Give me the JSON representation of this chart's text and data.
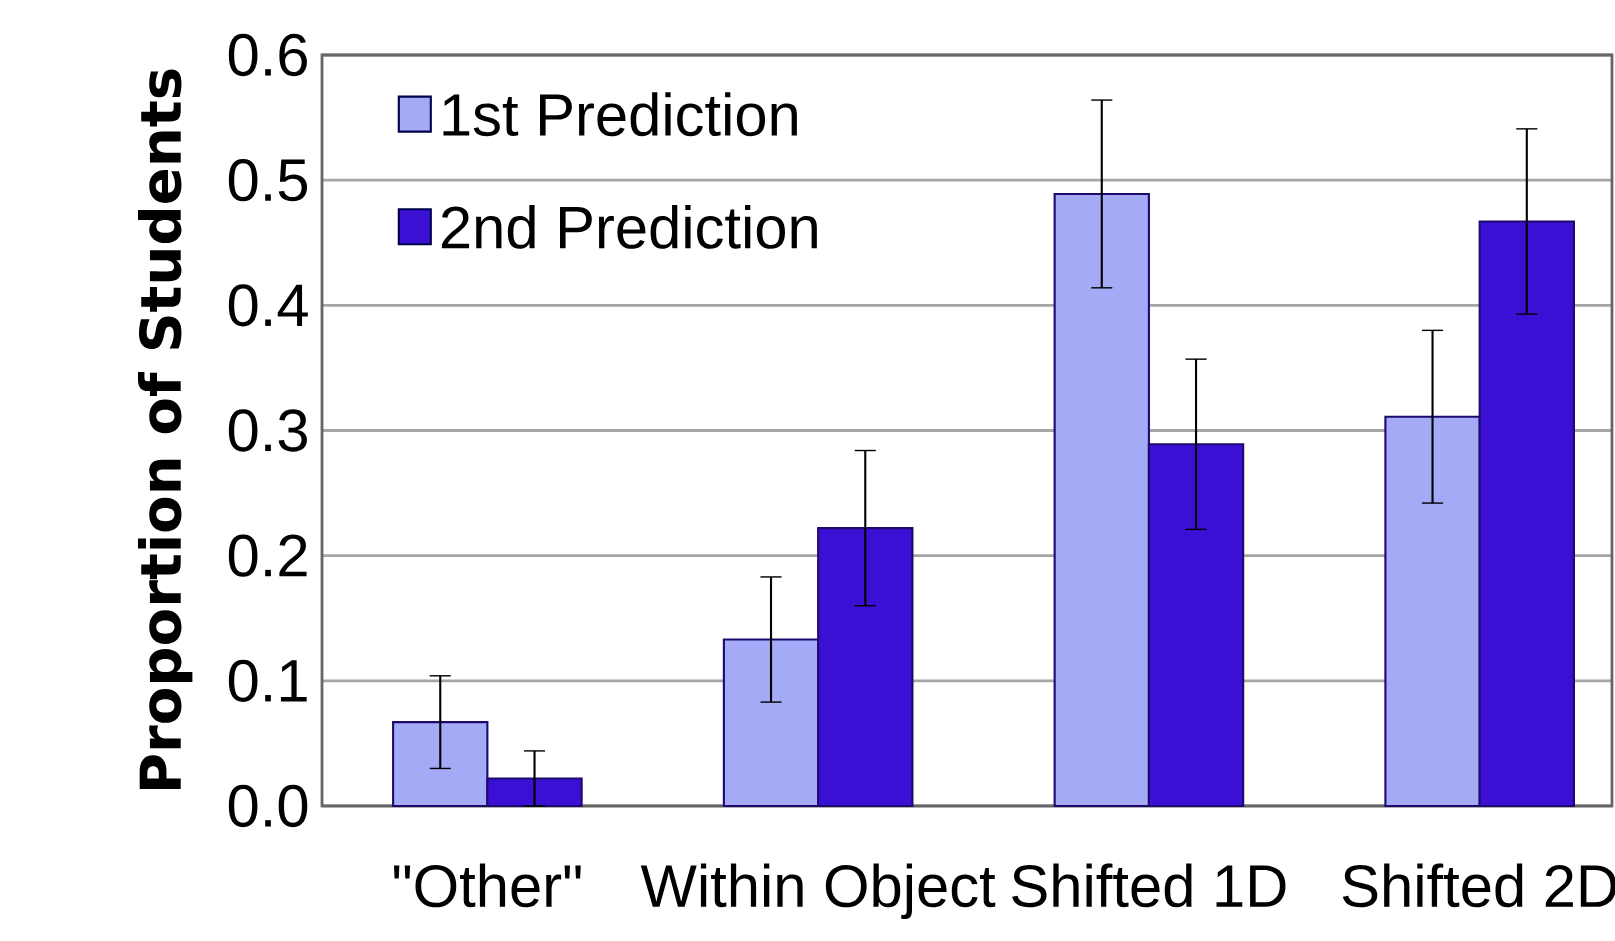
{
  "chart_data": {
    "type": "bar",
    "ylabel": "Proportion of Students",
    "categories": [
      "\"Other\"",
      "Within Object",
      "Shifted 1D",
      "Shifted 2D"
    ],
    "series": [
      {
        "name": "1st Prediction",
        "color": "#a5aaf7",
        "values": [
          0.067,
          0.133,
          0.489,
          0.311
        ],
        "errors": [
          0.037,
          0.05,
          0.075,
          0.069
        ]
      },
      {
        "name": "2nd Prediction",
        "color": "#3a10d4",
        "values": [
          0.022,
          0.222,
          0.289,
          0.467
        ],
        "errors": [
          0.022,
          0.062,
          0.068,
          0.074
        ]
      }
    ],
    "ylim": [
      0,
      0.6
    ],
    "yticks": [
      {
        "value": 0,
        "label": "0.0"
      },
      0.1,
      0.2,
      0.3,
      0.4,
      0.5,
      0.6
    ],
    "grid": "y",
    "legend": "top left"
  }
}
